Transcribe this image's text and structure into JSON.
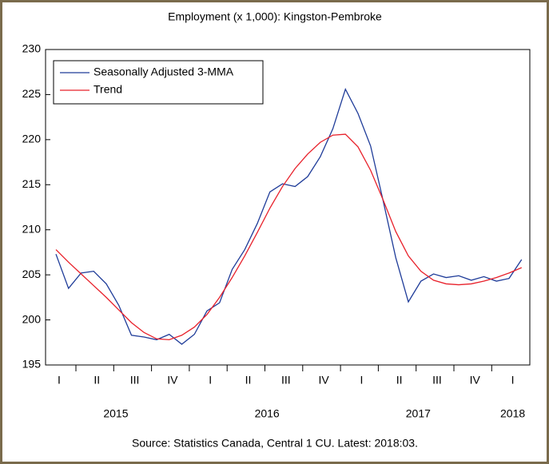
{
  "chart_data": {
    "type": "line",
    "title": "Employment (x 1,000): Kingston-Pembroke",
    "source": "Source: Statistics Canada, Central 1 CU. Latest: 2018:03.",
    "quarters": [
      "I",
      "II",
      "III",
      "IV",
      "I",
      "II",
      "III",
      "IV",
      "I",
      "II",
      "III",
      "IV",
      "I"
    ],
    "years": [
      "2015",
      "2016",
      "2017",
      "2018"
    ],
    "ylim": [
      195,
      230
    ],
    "yticks": [
      195,
      200,
      205,
      210,
      215,
      220,
      225,
      230
    ],
    "legend": "upper-left",
    "series": [
      {
        "name": "Seasonally Adjusted 3-MMA",
        "color": "#1f3c99",
        "values": [
          207.3,
          203.5,
          205.2,
          205.4,
          204.0,
          201.6,
          198.3,
          198.1,
          197.8,
          198.4,
          197.3,
          198.4,
          201.0,
          201.9,
          205.6,
          207.8,
          210.7,
          214.2,
          215.1,
          214.8,
          215.9,
          218.1,
          221.2,
          225.6,
          222.9,
          219.3,
          213.2,
          206.9,
          202.0,
          204.3,
          205.1,
          204.7,
          204.9,
          204.4,
          204.8,
          204.3,
          204.6,
          206.7
        ]
      },
      {
        "name": "Trend",
        "color": "#e8202a",
        "values": [
          207.8,
          206.4,
          205.1,
          203.8,
          202.5,
          201.1,
          199.7,
          198.6,
          197.9,
          197.8,
          198.3,
          199.2,
          200.6,
          202.5,
          204.7,
          207.1,
          209.7,
          212.4,
          214.8,
          216.8,
          218.4,
          219.7,
          220.5,
          220.6,
          219.2,
          216.6,
          213.3,
          209.8,
          207.1,
          205.4,
          204.4,
          204.0,
          203.9,
          204.0,
          204.3,
          204.7,
          205.2,
          205.8
        ]
      }
    ]
  }
}
